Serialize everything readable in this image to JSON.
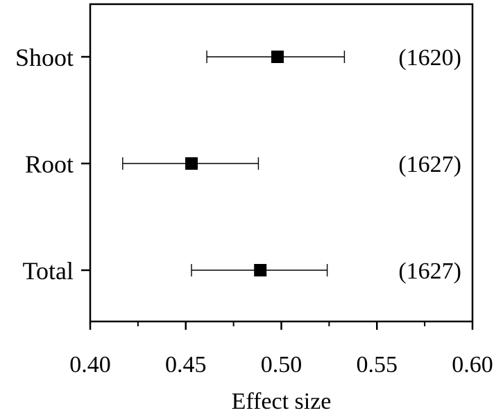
{
  "chart_data": {
    "type": "forest",
    "title": "",
    "xlabel": "Effect size",
    "ylabel": "",
    "xlim": [
      0.4,
      0.6
    ],
    "xticks": [
      "0.40",
      "0.45",
      "0.50",
      "0.55",
      "0.60"
    ],
    "xtick_values": [
      0.4,
      0.45,
      0.5,
      0.55,
      0.6
    ],
    "grid": false,
    "legend": "none",
    "categories": [
      "Shoot",
      "Root",
      "Total"
    ],
    "values": [
      0.498,
      0.453,
      0.489
    ],
    "ci_low": [
      0.461,
      0.417,
      0.453
    ],
    "ci_high": [
      0.533,
      0.488,
      0.524
    ],
    "n_labels": [
      "(1620)",
      "(1627)",
      "(1627)"
    ]
  }
}
